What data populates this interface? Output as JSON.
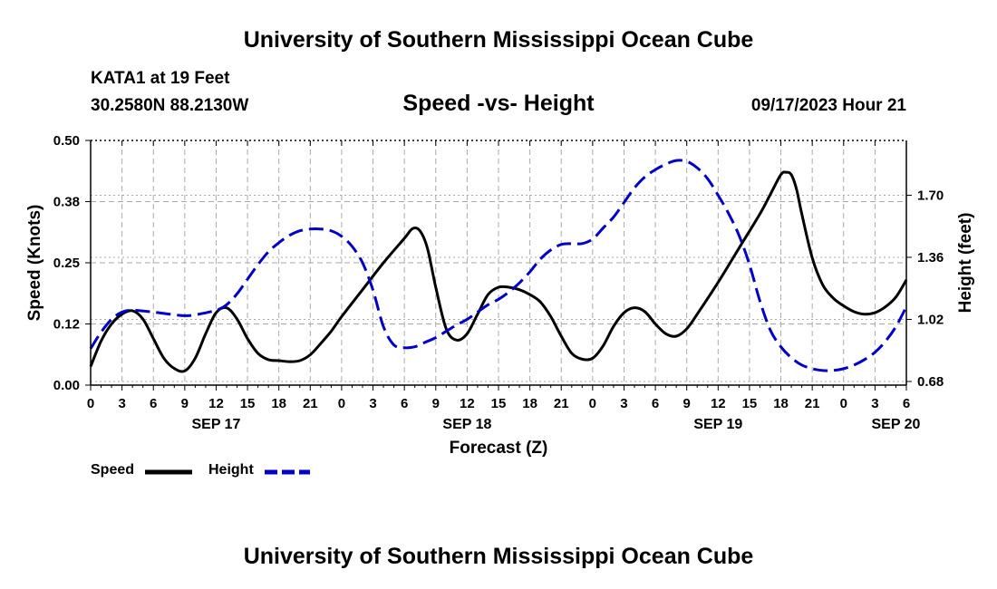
{
  "header": {
    "title": "University of Southern Mississippi Ocean Cube",
    "station": "KATA1 at 19 Feet",
    "coords": "30.2580N  88.2130W",
    "subtitle": "Speed -vs- Height",
    "datestamp": "09/17/2023 Hour 21"
  },
  "footer": {
    "title": "University of Southern Mississippi Ocean Cube"
  },
  "legend": {
    "speed_label": "Speed",
    "height_label": "Height"
  },
  "colors": {
    "speed": "#000000",
    "height": "#0000c8",
    "grid": "#aaaaaa"
  },
  "chart_data": {
    "type": "line",
    "xlabel": "Forecast (Z)",
    "ylabel": "Speed (Knots)",
    "y2label": "Height (feet)",
    "x_hours_range": [
      0,
      78
    ],
    "x_ticks": [
      {
        "h": 0,
        "label": "0"
      },
      {
        "h": 3,
        "label": "3"
      },
      {
        "h": 6,
        "label": "6"
      },
      {
        "h": 9,
        "label": "9"
      },
      {
        "h": 12,
        "label": "12"
      },
      {
        "h": 15,
        "label": "15"
      },
      {
        "h": 18,
        "label": "18"
      },
      {
        "h": 21,
        "label": "21"
      },
      {
        "h": 24,
        "label": "0"
      },
      {
        "h": 27,
        "label": "3"
      },
      {
        "h": 30,
        "label": "6"
      },
      {
        "h": 33,
        "label": "9"
      },
      {
        "h": 36,
        "label": "12"
      },
      {
        "h": 39,
        "label": "15"
      },
      {
        "h": 42,
        "label": "18"
      },
      {
        "h": 45,
        "label": "21"
      },
      {
        "h": 48,
        "label": "0"
      },
      {
        "h": 51,
        "label": "3"
      },
      {
        "h": 54,
        "label": "6"
      },
      {
        "h": 57,
        "label": "9"
      },
      {
        "h": 60,
        "label": "12"
      },
      {
        "h": 63,
        "label": "15"
      },
      {
        "h": 66,
        "label": "18"
      },
      {
        "h": 69,
        "label": "21"
      },
      {
        "h": 72,
        "label": "0"
      },
      {
        "h": 75,
        "label": "3"
      },
      {
        "h": 78,
        "label": "6"
      }
    ],
    "date_labels": [
      {
        "h": 12,
        "label": "SEP 17"
      },
      {
        "h": 36,
        "label": "SEP 18"
      },
      {
        "h": 60,
        "label": "SEP 19"
      },
      {
        "h": 77,
        "label": "SEP 20"
      }
    ],
    "ylim": [
      0,
      0.5
    ],
    "y_ticks": [
      {
        "v": 0.0,
        "label": "0.00"
      },
      {
        "v": 0.125,
        "label": "0.12"
      },
      {
        "v": 0.25,
        "label": "0.25"
      },
      {
        "v": 0.375,
        "label": "0.38"
      },
      {
        "v": 0.5,
        "label": "0.50"
      }
    ],
    "y2lim": [
      0.66,
      2.0
    ],
    "y2_ticks": [
      {
        "v": 0.68,
        "label": "0.68"
      },
      {
        "v": 1.02,
        "label": "1.02"
      },
      {
        "v": 1.36,
        "label": "1.36"
      },
      {
        "v": 1.7,
        "label": "1.70"
      }
    ],
    "series": [
      {
        "name": "Speed",
        "axis": "left",
        "style": "solid",
        "points": [
          [
            0,
            0.038
          ],
          [
            1,
            0.09
          ],
          [
            2,
            0.125
          ],
          [
            3,
            0.145
          ],
          [
            4,
            0.152
          ],
          [
            5,
            0.135
          ],
          [
            6,
            0.095
          ],
          [
            7,
            0.055
          ],
          [
            8,
            0.034
          ],
          [
            9,
            0.029
          ],
          [
            10,
            0.055
          ],
          [
            11,
            0.105
          ],
          [
            12,
            0.148
          ],
          [
            13,
            0.158
          ],
          [
            14,
            0.135
          ],
          [
            15,
            0.095
          ],
          [
            16,
            0.065
          ],
          [
            17,
            0.052
          ],
          [
            18,
            0.05
          ],
          [
            19,
            0.048
          ],
          [
            20,
            0.05
          ],
          [
            21,
            0.062
          ],
          [
            22,
            0.085
          ],
          [
            23,
            0.11
          ],
          [
            24,
            0.14
          ],
          [
            26,
            0.195
          ],
          [
            28,
            0.25
          ],
          [
            30,
            0.3
          ],
          [
            30.8,
            0.32
          ],
          [
            31.5,
            0.315
          ],
          [
            32.2,
            0.28
          ],
          [
            33,
            0.2
          ],
          [
            34,
            0.115
          ],
          [
            35,
            0.092
          ],
          [
            36,
            0.105
          ],
          [
            37,
            0.145
          ],
          [
            38,
            0.185
          ],
          [
            39,
            0.2
          ],
          [
            40,
            0.2
          ],
          [
            41,
            0.195
          ],
          [
            42,
            0.185
          ],
          [
            43,
            0.17
          ],
          [
            44,
            0.14
          ],
          [
            45,
            0.1
          ],
          [
            46,
            0.065
          ],
          [
            47,
            0.053
          ],
          [
            48,
            0.055
          ],
          [
            49,
            0.08
          ],
          [
            50,
            0.12
          ],
          [
            51,
            0.148
          ],
          [
            52,
            0.158
          ],
          [
            53,
            0.15
          ],
          [
            54,
            0.125
          ],
          [
            55,
            0.105
          ],
          [
            56,
            0.1
          ],
          [
            57,
            0.115
          ],
          [
            58,
            0.145
          ],
          [
            60,
            0.21
          ],
          [
            62,
            0.28
          ],
          [
            64,
            0.35
          ],
          [
            65,
            0.39
          ],
          [
            66,
            0.43
          ],
          [
            66.5,
            0.435
          ],
          [
            67,
            0.43
          ],
          [
            67.5,
            0.4
          ],
          [
            68,
            0.35
          ],
          [
            69,
            0.26
          ],
          [
            70,
            0.205
          ],
          [
            71,
            0.178
          ],
          [
            72,
            0.162
          ],
          [
            73,
            0.15
          ],
          [
            74,
            0.145
          ],
          [
            75,
            0.148
          ],
          [
            76,
            0.16
          ],
          [
            77,
            0.18
          ],
          [
            78,
            0.215
          ]
        ]
      },
      {
        "name": "Height",
        "axis": "right",
        "style": "dashed",
        "points": [
          [
            0,
            0.86
          ],
          [
            1,
            0.95
          ],
          [
            2,
            1.02
          ],
          [
            3,
            1.06
          ],
          [
            4,
            1.07
          ],
          [
            6,
            1.06
          ],
          [
            8,
            1.045
          ],
          [
            9,
            1.04
          ],
          [
            10,
            1.045
          ],
          [
            12,
            1.07
          ],
          [
            13,
            1.1
          ],
          [
            14,
            1.16
          ],
          [
            15,
            1.24
          ],
          [
            16,
            1.32
          ],
          [
            17,
            1.39
          ],
          [
            18,
            1.44
          ],
          [
            19,
            1.48
          ],
          [
            20,
            1.505
          ],
          [
            21,
            1.515
          ],
          [
            22,
            1.515
          ],
          [
            23,
            1.505
          ],
          [
            24,
            1.475
          ],
          [
            25,
            1.42
          ],
          [
            26,
            1.33
          ],
          [
            27,
            1.18
          ],
          [
            28,
            0.98
          ],
          [
            29,
            0.88
          ],
          [
            30,
            0.865
          ],
          [
            31,
            0.87
          ],
          [
            32,
            0.895
          ],
          [
            33,
            0.92
          ],
          [
            34,
            0.955
          ],
          [
            35,
            0.99
          ],
          [
            36,
            1.02
          ],
          [
            37,
            1.06
          ],
          [
            38,
            1.1
          ],
          [
            39,
            1.13
          ],
          [
            40,
            1.17
          ],
          [
            41,
            1.22
          ],
          [
            42,
            1.28
          ],
          [
            43,
            1.35
          ],
          [
            44,
            1.4
          ],
          [
            45,
            1.43
          ],
          [
            46,
            1.435
          ],
          [
            47,
            1.435
          ],
          [
            48,
            1.46
          ],
          [
            49,
            1.52
          ],
          [
            50,
            1.58
          ],
          [
            51,
            1.66
          ],
          [
            52,
            1.74
          ],
          [
            53,
            1.8
          ],
          [
            54,
            1.84
          ],
          [
            55,
            1.87
          ],
          [
            56,
            1.89
          ],
          [
            57,
            1.885
          ],
          [
            58,
            1.85
          ],
          [
            59,
            1.79
          ],
          [
            60,
            1.7
          ],
          [
            61,
            1.6
          ],
          [
            62,
            1.48
          ],
          [
            63,
            1.32
          ],
          [
            64,
            1.12
          ],
          [
            65,
            0.96
          ],
          [
            66,
            0.87
          ],
          [
            67,
            0.81
          ],
          [
            68,
            0.77
          ],
          [
            69,
            0.75
          ],
          [
            70,
            0.74
          ],
          [
            71,
            0.74
          ],
          [
            72,
            0.75
          ],
          [
            73,
            0.77
          ],
          [
            74,
            0.8
          ],
          [
            75,
            0.84
          ],
          [
            76,
            0.9
          ],
          [
            77,
            0.98
          ],
          [
            78,
            1.09
          ]
        ]
      }
    ]
  }
}
